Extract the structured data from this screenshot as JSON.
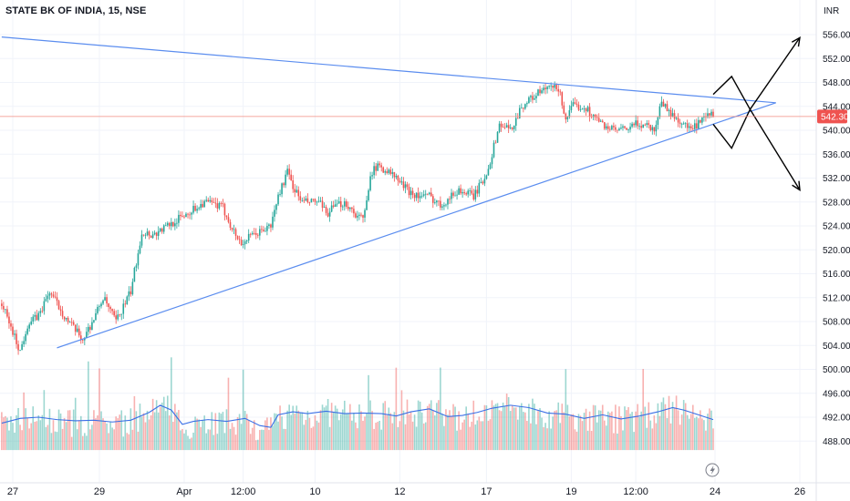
{
  "header": {
    "symbol_title": "STATE BK OF INDIA, 15, NSE"
  },
  "price_axis": {
    "currency": "INR",
    "current_price_label": "542.30"
  },
  "colors": {
    "up": "#26a69a",
    "down": "#ef5350",
    "trendline": "#5b8def",
    "volume_ma": "#3a6fe6",
    "price_line": "#f28b82",
    "badge": "#ef5350",
    "annotation": "#000000"
  },
  "icons": {
    "replay": "lightning-icon"
  },
  "chart_data": {
    "type": "candlestick",
    "title": "STATE BK OF INDIA, 15, NSE",
    "y_unit": "INR",
    "ylim": [
      486,
      558
    ],
    "y_ticks": [
      "556.00",
      "552.00",
      "548.00",
      "544.00",
      "540.00",
      "536.00",
      "532.00",
      "528.00",
      "524.00",
      "520.00",
      "516.00",
      "512.00",
      "508.00",
      "504.00",
      "500.00",
      "496.00",
      "492.00",
      "488.00"
    ],
    "x_labels": [
      "27",
      "29",
      "Apr",
      "12:00",
      "10",
      "12",
      "17",
      "19",
      "12:00",
      "24",
      "26"
    ],
    "x_range_index": [
      0,
      440
    ],
    "x_label_index": [
      6,
      53,
      99,
      131,
      170,
      216,
      263,
      309,
      344,
      387,
      433
    ],
    "last_price": 542.3,
    "price_path": [
      [
        0,
        511
      ],
      [
        5,
        507
      ],
      [
        10,
        503
      ],
      [
        14,
        507.5
      ],
      [
        20,
        509
      ],
      [
        26,
        513
      ],
      [
        30,
        511
      ],
      [
        36,
        508
      ],
      [
        44,
        505
      ],
      [
        50,
        508.5
      ],
      [
        55,
        512
      ],
      [
        62,
        508
      ],
      [
        70,
        513
      ],
      [
        73,
        518
      ],
      [
        76,
        523
      ],
      [
        82,
        522.5
      ],
      [
        90,
        524
      ],
      [
        100,
        526
      ],
      [
        110,
        528
      ],
      [
        116,
        527.5
      ],
      [
        120,
        527
      ],
      [
        126,
        523
      ],
      [
        130,
        521
      ],
      [
        134,
        522
      ],
      [
        140,
        523
      ],
      [
        146,
        524
      ],
      [
        150,
        529
      ],
      [
        155,
        533
      ],
      [
        159,
        530
      ],
      [
        163,
        528
      ],
      [
        167,
        528
      ],
      [
        172,
        528
      ],
      [
        176,
        526
      ],
      [
        180,
        527
      ],
      [
        186,
        528
      ],
      [
        192,
        526
      ],
      [
        196,
        525
      ],
      [
        198,
        528
      ],
      [
        200,
        533
      ],
      [
        205,
        534
      ],
      [
        210,
        533
      ],
      [
        214,
        532
      ],
      [
        220,
        530
      ],
      [
        226,
        529
      ],
      [
        232,
        529
      ],
      [
        238,
        527.5
      ],
      [
        242,
        528.5
      ],
      [
        248,
        530
      ],
      [
        256,
        529
      ],
      [
        262,
        532
      ],
      [
        266,
        536
      ],
      [
        270,
        541
      ],
      [
        276,
        540
      ],
      [
        282,
        544
      ],
      [
        290,
        546
      ],
      [
        296,
        547
      ],
      [
        302,
        547
      ],
      [
        306,
        542
      ],
      [
        310,
        544
      ],
      [
        316,
        544
      ],
      [
        322,
        542
      ],
      [
        326,
        541
      ],
      [
        332,
        540
      ],
      [
        338,
        540
      ],
      [
        344,
        541
      ],
      [
        350,
        541
      ],
      [
        354,
        540
      ],
      [
        358,
        545
      ],
      [
        362,
        543
      ],
      [
        366,
        542
      ],
      [
        370,
        541
      ],
      [
        374,
        540
      ],
      [
        378,
        541
      ],
      [
        382,
        542
      ],
      [
        386,
        543
      ]
    ],
    "volume_ma_path": [
      [
        0,
        491
      ],
      [
        10,
        491.8
      ],
      [
        20,
        492
      ],
      [
        30,
        491.6
      ],
      [
        40,
        491.4
      ],
      [
        50,
        491.5
      ],
      [
        60,
        491.2
      ],
      [
        70,
        491.5
      ],
      [
        80,
        492.8
      ],
      [
        86,
        494
      ],
      [
        92,
        493.2
      ],
      [
        98,
        490.8
      ],
      [
        104,
        491.3
      ],
      [
        112,
        491.6
      ],
      [
        122,
        491.3
      ],
      [
        132,
        491.8
      ],
      [
        140,
        490.6
      ],
      [
        146,
        490.3
      ],
      [
        150,
        492.4
      ],
      [
        158,
        492.9
      ],
      [
        166,
        492.6
      ],
      [
        176,
        493
      ],
      [
        186,
        492.6
      ],
      [
        196,
        492.7
      ],
      [
        206,
        492.6
      ],
      [
        214,
        492.2
      ],
      [
        222,
        492.9
      ],
      [
        232,
        493.4
      ],
      [
        242,
        492.1
      ],
      [
        250,
        492.3
      ],
      [
        258,
        492.8
      ],
      [
        266,
        493.5
      ],
      [
        276,
        494
      ],
      [
        286,
        493.6
      ],
      [
        296,
        492.7
      ],
      [
        306,
        492.5
      ],
      [
        316,
        491.8
      ],
      [
        326,
        492.4
      ],
      [
        336,
        491.7
      ],
      [
        346,
        492.2
      ],
      [
        356,
        492.9
      ],
      [
        364,
        493.6
      ],
      [
        370,
        493.2
      ],
      [
        378,
        492.4
      ],
      [
        386,
        491.6
      ]
    ],
    "trendlines": [
      {
        "from": [
          0,
          555.6
        ],
        "to": [
          420,
          544.6
        ]
      },
      {
        "from": [
          30,
          503.6
        ],
        "to": [
          420,
          544.6
        ]
      }
    ],
    "annotations": [
      {
        "type": "zigzag-up-arrow",
        "points": [
          [
            386,
            546
          ],
          [
            396,
            549
          ],
          [
            406,
            543.5
          ],
          [
            433,
            555.5
          ]
        ]
      },
      {
        "type": "zigzag-down-arrow",
        "points": [
          [
            386,
            541
          ],
          [
            396,
            537
          ],
          [
            406,
            543.5
          ],
          [
            433,
            530
          ]
        ]
      }
    ]
  }
}
